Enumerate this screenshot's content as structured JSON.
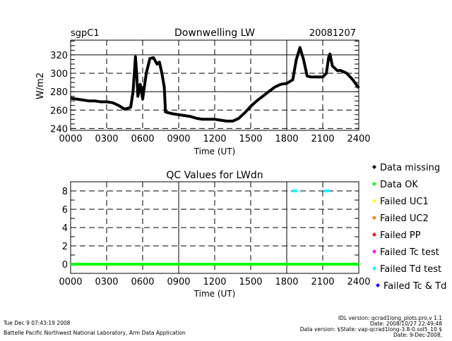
{
  "chart_data": [
    {
      "type": "line",
      "title": "Downwelling LW",
      "left_label": "sgpC1",
      "right_label": "20081207",
      "xlabel": "Time (UT)",
      "ylabel": "W/m2",
      "xlim": [
        0,
        24
      ],
      "ylim": [
        238,
        336
      ],
      "xticks": [
        0,
        3,
        6,
        9,
        12,
        15,
        18,
        21,
        24
      ],
      "xtick_labels": [
        "0000",
        "0300",
        "0600",
        "0900",
        "1200",
        "1500",
        "1800",
        "2100",
        "2400"
      ],
      "yticks": [
        240,
        260,
        280,
        300,
        320
      ],
      "ytick_labels": [
        "240",
        "260",
        "280",
        "300",
        "320"
      ],
      "grid": true,
      "series": [
        {
          "name": "LWdn",
          "color": "#000000",
          "x": [
            0,
            0.5,
            1,
            1.5,
            2,
            2.5,
            3,
            3.5,
            4,
            4.5,
            5,
            5.2,
            5.4,
            5.5,
            5.6,
            5.8,
            6.0,
            6.3,
            6.6,
            6.9,
            7.2,
            7.4,
            7.6,
            7.8,
            7.9,
            8.5,
            9,
            10,
            10.5,
            11,
            12,
            12.5,
            13,
            13.5,
            14,
            14.5,
            15,
            15.5,
            16,
            16.5,
            17,
            17.5,
            18,
            18.5,
            18.8,
            19.1,
            19.4,
            19.7,
            20,
            21,
            21.3,
            21.5,
            21.6,
            21.8,
            22.2,
            22.5,
            23,
            23.5,
            24
          ],
          "y": [
            273,
            272,
            271,
            270,
            270,
            269,
            269,
            268,
            265,
            261,
            263,
            280,
            318,
            300,
            275,
            288,
            272,
            300,
            316,
            317,
            310,
            312,
            300,
            285,
            258,
            256,
            255,
            253,
            251,
            250,
            250,
            249,
            248,
            248,
            251,
            257,
            264,
            270,
            275,
            280,
            285,
            288,
            289,
            293,
            315,
            328,
            315,
            297,
            296,
            296,
            300,
            318,
            321,
            308,
            303,
            303,
            300,
            293,
            284
          ]
        }
      ]
    },
    {
      "type": "scatter",
      "title": "QC Values for LWdn",
      "xlabel": "Time (UT)",
      "xlim": [
        0,
        24
      ],
      "ylim": [
        -1,
        9
      ],
      "xticks": [
        0,
        3,
        6,
        9,
        12,
        15,
        18,
        21,
        24
      ],
      "xtick_labels": [
        "0000",
        "0300",
        "0600",
        "0900",
        "1200",
        "1500",
        "1800",
        "2100",
        "2400"
      ],
      "yticks": [
        0,
        2,
        4,
        6,
        8
      ],
      "ytick_labels": [
        "0",
        "2",
        "4",
        "6",
        "8"
      ],
      "grid": true,
      "series": [
        {
          "name": "Data OK",
          "color": "#00ff00",
          "value": 0,
          "segments": [
            [
              0,
              24
            ]
          ]
        },
        {
          "name": "Failed Td test",
          "color": "#00ffff",
          "value": 8,
          "segments": [
            [
              18.47,
              18.88
            ],
            [
              19.18,
              19.29
            ],
            [
              21.06,
              21.53
            ]
          ]
        }
      ],
      "legend": [
        {
          "label": "Data missing",
          "color": "#000000"
        },
        {
          "label": "Data OK",
          "color": "#00ff00"
        },
        {
          "label": "Failed UC1",
          "color": "#ffff00"
        },
        {
          "label": "Failed UC2",
          "color": "#ff8000"
        },
        {
          "label": "Failed PP",
          "color": "#ff0000"
        },
        {
          "label": "Failed Tc test",
          "color": "#ff00ff"
        },
        {
          "label": "Failed Td test",
          "color": "#00ffff"
        },
        {
          "label": "Failed Tc & Td",
          "color": "#0000ff"
        }
      ]
    }
  ],
  "footer": {
    "timestamp": "Tue Dec  9 07:43:19 2008",
    "org": "Battelle Pacific Northwest National Laboratory, Arm Data Application",
    "idl_version": "IDL version: qcrad1long_plots.pro,v 1.1",
    "idl_date": "Date: 2008/10/27 22:49:48",
    "data_version": "Data version: $State: vap-qcrad1long-3.8-0.sol5_10 $",
    "data_date": "Date: 9-Dec-2008,"
  }
}
